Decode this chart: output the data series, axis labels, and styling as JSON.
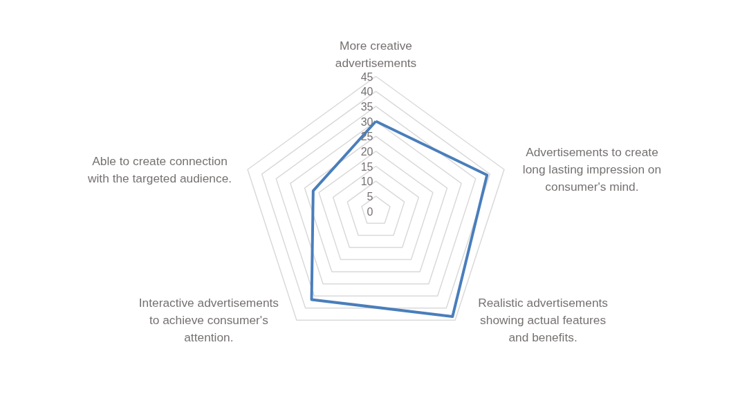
{
  "chart_data": {
    "type": "radar",
    "categories": [
      "More creative advertisements",
      "Advertisements to create long lasting impression on consumer's mind.",
      "Realistic advertisements showing actual features and benefits.",
      "Interactive advertisements to achieve consumer's attention.",
      "Able to create connection with the targeted audience."
    ],
    "series": [
      {
        "color": "#4a7ebb",
        "values": [
          30,
          39,
          43.5,
          36.5,
          22
        ]
      }
    ],
    "ylim": [
      0,
      45
    ],
    "yticks": [
      0,
      5,
      10,
      15,
      20,
      25,
      30,
      35,
      40,
      45
    ],
    "grid": true
  }
}
